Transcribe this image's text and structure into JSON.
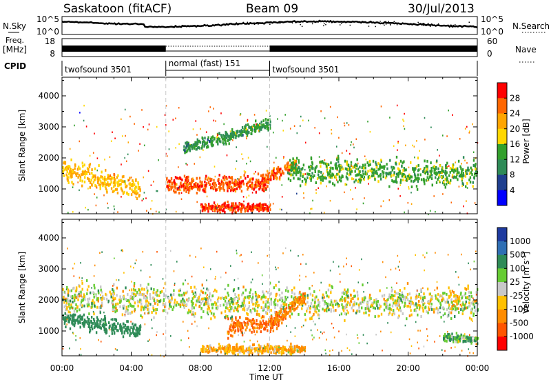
{
  "header": {
    "station": "Saskatoon (fitACF)",
    "beam": "Beam 09",
    "date": "30/Jul/2013"
  },
  "noise_panel": {
    "left_label": "N.Sky",
    "right_label": "N.Search",
    "left_ticks": [
      "10^5",
      "10^0"
    ],
    "right_ticks": [
      "10^5",
      "10^0"
    ]
  },
  "freq_panel": {
    "left_label_1": "Freq.",
    "left_label_2": "[MHz]",
    "right_label": "Nave",
    "left_ticks": [
      "18",
      "8"
    ],
    "right_ticks": [
      "60",
      "0"
    ]
  },
  "cpid_panel": {
    "label": "CPID",
    "segments": [
      {
        "start_hour": 0,
        "end_hour": 6,
        "label": "twofsound 3501"
      },
      {
        "start_hour": 6,
        "end_hour": 12,
        "label": "normal (fast) 151"
      },
      {
        "start_hour": 12,
        "end_hour": 24,
        "label": "twofsound 3501"
      }
    ]
  },
  "axes": {
    "ylabel": "Slant Range [km]",
    "xlabel": "Time UT",
    "x_ticks": [
      "00:00",
      "04:00",
      "08:00",
      "12:00",
      "16:00",
      "20:00",
      "00:00"
    ],
    "y_ticks": [
      "1000",
      "2000",
      "3000",
      "4000"
    ]
  },
  "power_colorbar": {
    "label": "Power [dB]",
    "ticks": [
      "28",
      "24",
      "20",
      "16",
      "12",
      "8",
      "4"
    ],
    "colors": [
      "#ff0000",
      "#ff6600",
      "#ffa500",
      "#ffd700",
      "#33a02c",
      "#2e8b57",
      "#1f3f8f",
      "#0000ff"
    ]
  },
  "velocity_colorbar": {
    "label": "Velocity [m s",
    "label_sup": "-1",
    "label_end": "]",
    "ticks": [
      "1000",
      "500",
      "100",
      "25",
      "-25",
      "-100",
      "-500",
      "-1000"
    ],
    "colors": [
      "#1e3a9f",
      "#2f6fb4",
      "#2e8b57",
      "#66cc33",
      "#c8c8c8",
      "#ffc000",
      "#ff8c00",
      "#ff5500",
      "#ff0000"
    ]
  },
  "chart_data": [
    {
      "type": "heatmap",
      "title": "",
      "xlabel": "Time UT",
      "ylabel": "Slant Range [km]",
      "xlim": [
        0,
        24
      ],
      "ylim": [
        200,
        4600
      ],
      "colorbar_label": "Power [dB]",
      "colorbar_range": [
        0,
        32
      ],
      "regions": [
        {
          "name": "",
          "t_start": 0,
          "t_end": 4.5,
          "range_center": [
            1600,
            1000
          ],
          "width_km": 500,
          "value": 20
        },
        {
          "name": "",
          "t_start": 6,
          "t_end": 12,
          "range_center": [
            1150,
            1150
          ],
          "width_km": 400,
          "value": 27
        },
        {
          "name": "",
          "t_start": 11.5,
          "t_end": 13.5,
          "range_center": [
            1300,
            1800
          ],
          "width_km": 300,
          "value": 26
        },
        {
          "name": "",
          "t_start": 13,
          "t_end": 24,
          "range_center": [
            1600,
            1500
          ],
          "width_km": 600,
          "value": 14
        },
        {
          "name": "",
          "t_start": 7,
          "t_end": 12,
          "range_center": [
            2300,
            3100
          ],
          "width_km": 300,
          "value": 12
        },
        {
          "name": "",
          "t_start": 8,
          "t_end": 12,
          "range_center": [
            400,
            400
          ],
          "width_km": 200,
          "value": 28
        }
      ]
    },
    {
      "type": "heatmap",
      "title": "",
      "xlabel": "Time UT",
      "ylabel": "Slant Range [km]",
      "xlim": [
        0,
        24
      ],
      "ylim": [
        200,
        4600
      ],
      "colorbar_label": "Velocity [m s-1]",
      "colorbar_range": [
        -1000,
        1000
      ],
      "regions": [
        {
          "name": "",
          "t_start": 0,
          "t_end": 24,
          "range_center": [
            2000,
            1900
          ],
          "width_km": 700,
          "value": 0
        },
        {
          "name": "",
          "t_start": 0,
          "t_end": 4.5,
          "range_center": [
            1400,
            1000
          ],
          "width_km": 400,
          "value": 300
        },
        {
          "name": "",
          "t_start": 9.5,
          "t_end": 12.5,
          "range_center": [
            1100,
            1300
          ],
          "width_km": 400,
          "value": -500
        },
        {
          "name": "",
          "t_start": 12,
          "t_end": 14,
          "range_center": [
            1200,
            2100
          ],
          "width_km": 300,
          "value": -450
        },
        {
          "name": "",
          "t_start": 8,
          "t_end": 14,
          "range_center": [
            400,
            400
          ],
          "width_km": 200,
          "value": -100
        },
        {
          "name": "",
          "t_start": 22,
          "t_end": 24,
          "range_center": [
            800,
            700
          ],
          "width_km": 200,
          "value": 100
        }
      ]
    }
  ]
}
